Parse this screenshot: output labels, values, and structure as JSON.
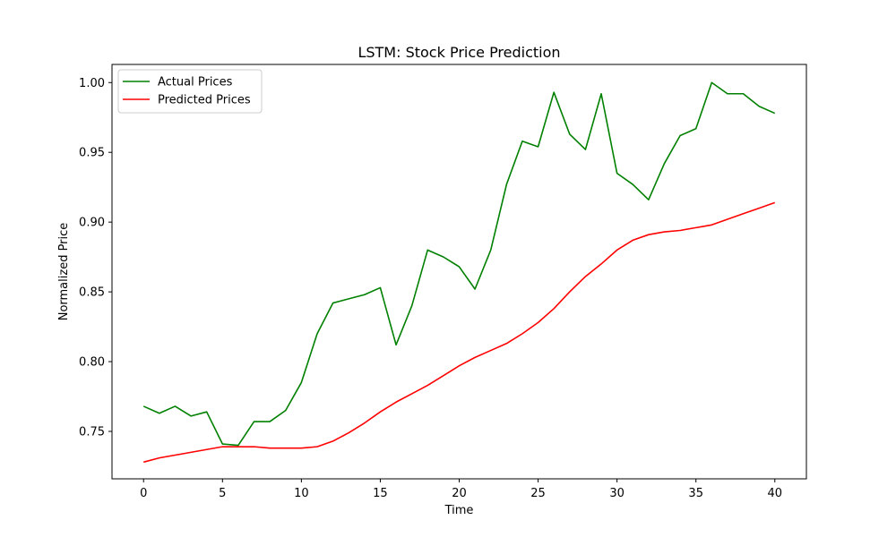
{
  "chart_data": {
    "type": "line",
    "title": "LSTM: Stock Price Prediction",
    "xlabel": "Time",
    "ylabel": "Normalized Price",
    "xlim": [
      -2,
      42
    ],
    "ylim": [
      0.716,
      1.013
    ],
    "xticks": [
      0,
      5,
      10,
      15,
      20,
      25,
      30,
      35,
      40
    ],
    "xtick_labels": [
      "0",
      "5",
      "10",
      "15",
      "20",
      "25",
      "30",
      "35",
      "40"
    ],
    "yticks": [
      0.75,
      0.8,
      0.85,
      0.9,
      0.95,
      1.0
    ],
    "ytick_labels": [
      "0.75",
      "0.80",
      "0.85",
      "0.90",
      "0.95",
      "1.00"
    ],
    "grid": false,
    "legend_position": "upper-left",
    "x": [
      0,
      1,
      2,
      3,
      4,
      5,
      6,
      7,
      8,
      9,
      10,
      11,
      12,
      13,
      14,
      15,
      16,
      17,
      18,
      19,
      20,
      21,
      22,
      23,
      24,
      25,
      26,
      27,
      28,
      29,
      30,
      31,
      32,
      33,
      34,
      35,
      36,
      37,
      38,
      39,
      40
    ],
    "series": [
      {
        "name": "Actual Prices",
        "color": "#008000",
        "values": [
          0.768,
          0.763,
          0.768,
          0.761,
          0.764,
          0.741,
          0.74,
          0.757,
          0.757,
          0.765,
          0.785,
          0.82,
          0.842,
          0.845,
          0.848,
          0.853,
          0.812,
          0.84,
          0.88,
          0.875,
          0.868,
          0.852,
          0.88,
          0.927,
          0.958,
          0.954,
          0.993,
          0.963,
          0.952,
          0.992,
          0.935,
          0.927,
          0.916,
          0.942,
          0.962,
          0.967,
          1.0,
          0.992,
          0.992,
          0.983,
          0.978
        ]
      },
      {
        "name": "Predicted Prices",
        "color": "#ff0000",
        "values": [
          0.728,
          0.731,
          0.733,
          0.735,
          0.737,
          0.739,
          0.739,
          0.739,
          0.738,
          0.738,
          0.738,
          0.739,
          0.743,
          0.749,
          0.756,
          0.764,
          0.771,
          0.777,
          0.783,
          0.79,
          0.797,
          0.803,
          0.808,
          0.813,
          0.82,
          0.828,
          0.838,
          0.85,
          0.861,
          0.87,
          0.88,
          0.887,
          0.891,
          0.893,
          0.894,
          0.896,
          0.898,
          0.902,
          0.906,
          0.91,
          0.914
        ]
      }
    ]
  }
}
